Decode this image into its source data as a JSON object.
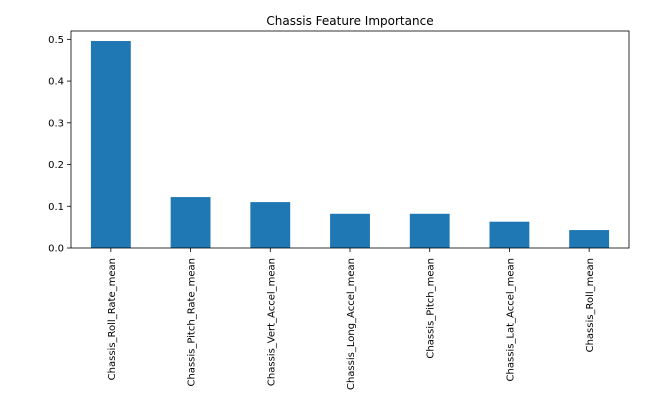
{
  "chart_data": {
    "type": "bar",
    "title": "Chassis Feature Importance",
    "xlabel": "",
    "ylabel": "",
    "categories": [
      "Chassis_Roll_Rate_mean",
      "Chassis_Pitch_Rate_mean",
      "Chassis_Vert_Accel_mean",
      "Chassis_Long_Accel_mean",
      "Chassis_Pitch_mean",
      "Chassis_Lat_Accel_mean",
      "Chassis_Roll_mean"
    ],
    "values": [
      0.496,
      0.122,
      0.11,
      0.082,
      0.082,
      0.063,
      0.043
    ],
    "ylim": [
      0,
      0.52
    ],
    "yticks": [
      0.0,
      0.1,
      0.2,
      0.3,
      0.4,
      0.5
    ],
    "ytick_labels": [
      "0.0",
      "0.1",
      "0.2",
      "0.3",
      "0.4",
      "0.5"
    ],
    "bar_color": "#1f77b4",
    "grid": false,
    "legend": "none"
  }
}
